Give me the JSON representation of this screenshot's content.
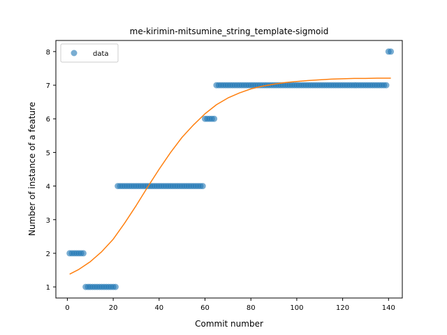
{
  "chart_data": {
    "type": "scatter",
    "title": "me-kirimin-mitsumine_string_template-sigmoid",
    "xlabel": "Commit number",
    "ylabel": "Number of instance of a feature",
    "xlim": [
      -5,
      146
    ],
    "ylim": [
      0.67,
      8.33
    ],
    "xticks": [
      0,
      20,
      40,
      60,
      80,
      100,
      120,
      140
    ],
    "yticks": [
      1,
      2,
      3,
      4,
      5,
      6,
      7,
      8
    ],
    "grid": false,
    "legend": {
      "placement": "top-left",
      "entries": [
        "data"
      ]
    },
    "colors": {
      "data": "#1f77b4",
      "fit": "#ff7f0e"
    },
    "series": [
      {
        "name": "data",
        "style": "markers",
        "groups": [
          {
            "x_from": 1,
            "x_to": 7,
            "y": 2
          },
          {
            "x_from": 8,
            "x_to": 21,
            "y": 1
          },
          {
            "x_from": 22,
            "x_to": 59,
            "y": 4
          },
          {
            "x_from": 60,
            "x_to": 64,
            "y": 6
          },
          {
            "x_from": 65,
            "x_to": 139,
            "y": 7
          },
          {
            "x_from": 140,
            "x_to": 141,
            "y": 8
          }
        ]
      },
      {
        "style": "line",
        "x": [
          1,
          5,
          10,
          15,
          20,
          25,
          30,
          35,
          40,
          45,
          50,
          55,
          60,
          65,
          70,
          75,
          80,
          85,
          90,
          95,
          100,
          105,
          110,
          115,
          120,
          125,
          130,
          135,
          141
        ],
        "y": [
          1.38,
          1.52,
          1.75,
          2.05,
          2.42,
          2.9,
          3.42,
          3.97,
          4.5,
          5.0,
          5.45,
          5.82,
          6.15,
          6.42,
          6.62,
          6.77,
          6.89,
          6.97,
          7.03,
          7.08,
          7.11,
          7.14,
          7.16,
          7.18,
          7.19,
          7.2,
          7.2,
          7.21,
          7.21
        ]
      }
    ]
  }
}
